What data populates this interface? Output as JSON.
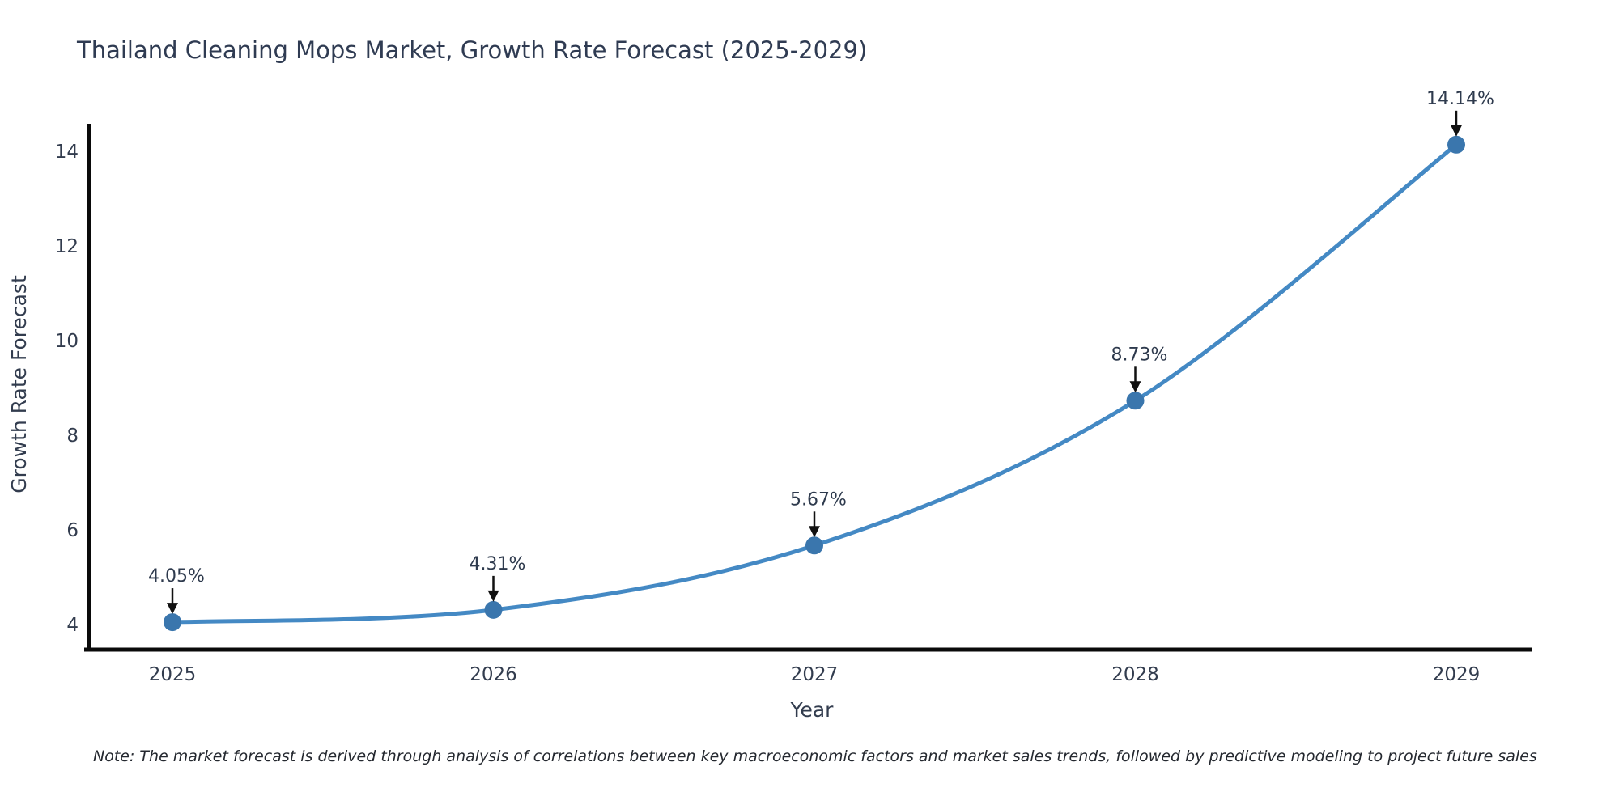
{
  "chart_data": {
    "type": "line",
    "title": "Thailand Cleaning Mops Market, Growth Rate Forecast (2025-2029)",
    "xlabel": "Year",
    "ylabel": "Growth Rate Forecast",
    "x": [
      2025,
      2026,
      2027,
      2028,
      2029
    ],
    "series": [
      {
        "name": "Growth Rate Forecast",
        "values": [
          4.05,
          4.31,
          5.67,
          8.73,
          14.14
        ]
      }
    ],
    "point_labels": [
      "4.05%",
      "4.31%",
      "5.67%",
      "8.73%",
      "14.14%"
    ],
    "yticks": [
      4,
      6,
      8,
      10,
      12,
      14
    ],
    "xticks": [
      2025,
      2026,
      2027,
      2028,
      2029
    ],
    "xlim": [
      2024.73,
      2029.24
    ],
    "ylim": [
      3.5,
      14.6
    ],
    "grid": false,
    "legend": "none",
    "annotation_style": "black-down-arrow-to-point"
  },
  "note": {
    "text": "Note: The market forecast is derived through analysis of correlations between key macroeconomic factors and market sales trends, followed by predictive modeling to project future sales"
  },
  "colors": {
    "line": "#4489c4",
    "marker": "#3a76ad",
    "arrow": "#111111",
    "title_text": "#2f3b52",
    "tick_text": "#323c4e",
    "annotation_text": "#2e3a4d",
    "note_text": "#24282f",
    "axis": "#0a0a0a",
    "background": "#ffffff"
  }
}
